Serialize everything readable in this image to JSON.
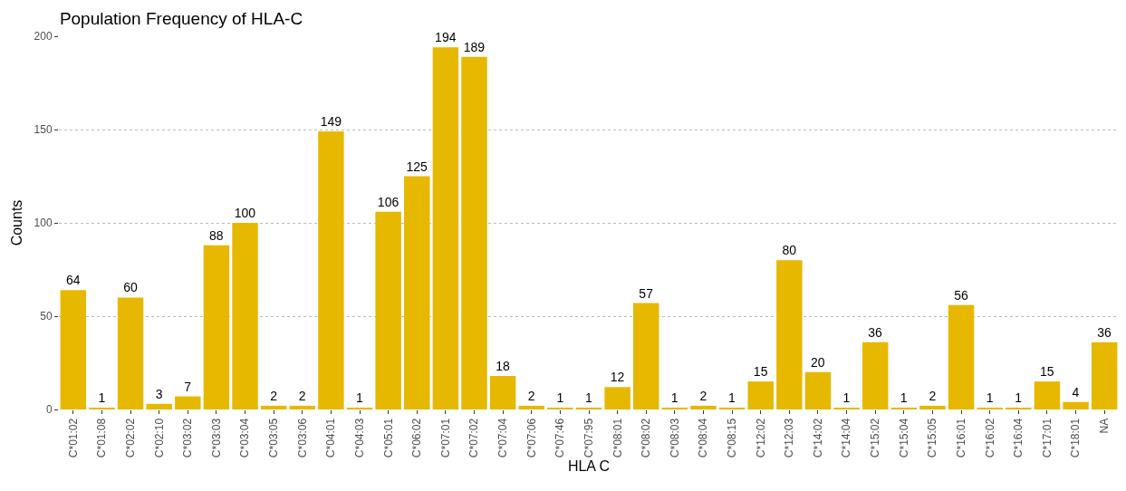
{
  "chart_data": {
    "type": "bar",
    "title": "Population Frequency of HLA-C",
    "xlabel": "HLA C",
    "ylabel": "Counts",
    "categories": [
      "C*01:02",
      "C*01:08",
      "C*02:02",
      "C*02:10",
      "C*03:02",
      "C*03:03",
      "C*03:04",
      "C*03:05",
      "C*03:06",
      "C*04:01",
      "C*04:03",
      "C*05:01",
      "C*06:02",
      "C*07:01",
      "C*07:02",
      "C*07:04",
      "C*07:06",
      "C*07:46",
      "C*07:95",
      "C*08:01",
      "C*08:02",
      "C*08:03",
      "C*08:04",
      "C*08:15",
      "C*12:02",
      "C*12:03",
      "C*14:02",
      "C*14:04",
      "C*15:02",
      "C*15:04",
      "C*15:05",
      "C*16:01",
      "C*16:02",
      "C*16:04",
      "C*17:01",
      "C*18:01",
      "NA"
    ],
    "values": [
      64,
      1,
      60,
      3,
      7,
      88,
      100,
      2,
      2,
      149,
      1,
      106,
      125,
      194,
      189,
      18,
      2,
      1,
      1,
      12,
      57,
      1,
      2,
      1,
      15,
      80,
      20,
      1,
      36,
      1,
      2,
      56,
      1,
      1,
      15,
      4,
      36
    ],
    "color": "#e6b800",
    "ylim": [
      0,
      200
    ],
    "yticks": [
      0,
      50,
      100,
      150,
      200
    ],
    "grid": "y",
    "data_labels": true
  }
}
